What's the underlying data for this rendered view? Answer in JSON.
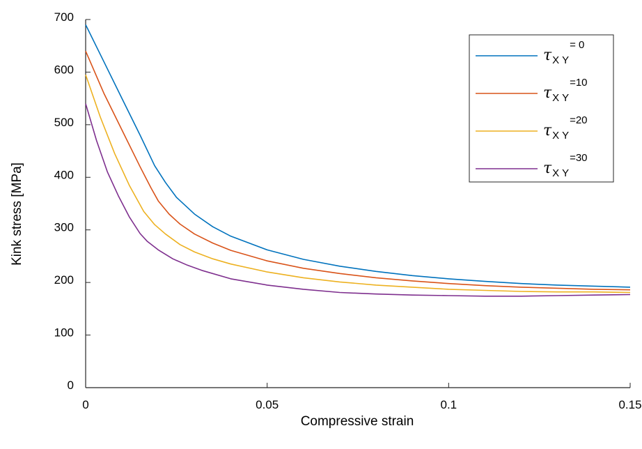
{
  "chart_data": {
    "type": "line",
    "title": "",
    "xlabel": "Compressive strain",
    "ylabel": "Kink stress [MPa]",
    "xlim": [
      0,
      0.15
    ],
    "ylim": [
      0,
      700
    ],
    "xticks": [
      0,
      0.05,
      0.1,
      0.15
    ],
    "xtick_labels": [
      "0",
      "0.05",
      "0.1",
      "0.15"
    ],
    "yticks": [
      0,
      100,
      200,
      300,
      400,
      500,
      600,
      700
    ],
    "ytick_labels": [
      "0",
      "100",
      "200",
      "300",
      "400",
      "500",
      "600",
      "700"
    ],
    "grid": false,
    "legend_position": "top-right",
    "legend": {
      "symbol": "τ",
      "subscript": "X Y",
      "suffixes": [
        "= 0",
        "=10",
        "=20",
        "=30"
      ]
    },
    "series": [
      {
        "color": "#0072BD",
        "x": [
          0,
          0.005,
          0.01,
          0.015,
          0.019,
          0.022,
          0.025,
          0.03,
          0.035,
          0.04,
          0.05,
          0.06,
          0.07,
          0.08,
          0.09,
          0.1,
          0.11,
          0.12,
          0.13,
          0.14,
          0.15
        ],
        "y": [
          690,
          620,
          550,
          480,
          422,
          390,
          362,
          330,
          306,
          288,
          262,
          244,
          231,
          221,
          213,
          207,
          202,
          198,
          195,
          193,
          191
        ]
      },
      {
        "color": "#D95319",
        "x": [
          0,
          0.005,
          0.01,
          0.015,
          0.018,
          0.02,
          0.023,
          0.026,
          0.03,
          0.035,
          0.04,
          0.05,
          0.06,
          0.07,
          0.08,
          0.09,
          0.1,
          0.11,
          0.12,
          0.13,
          0.14,
          0.15
        ],
        "y": [
          640,
          560,
          490,
          420,
          380,
          355,
          330,
          311,
          292,
          275,
          261,
          241,
          227,
          217,
          209,
          203,
          198,
          194,
          191,
          189,
          187,
          186
        ]
      },
      {
        "color": "#EDB120",
        "x": [
          0,
          0.004,
          0.008,
          0.012,
          0.016,
          0.019,
          0.022,
          0.026,
          0.03,
          0.035,
          0.04,
          0.05,
          0.06,
          0.07,
          0.08,
          0.09,
          0.1,
          0.11,
          0.12,
          0.13,
          0.14,
          0.15
        ],
        "y": [
          595,
          515,
          445,
          385,
          335,
          310,
          292,
          272,
          258,
          245,
          235,
          220,
          209,
          201,
          195,
          191,
          187,
          185,
          183,
          182,
          182,
          181
        ]
      },
      {
        "color": "#7E2F8E",
        "x": [
          0,
          0.003,
          0.006,
          0.009,
          0.012,
          0.015,
          0.017,
          0.02,
          0.024,
          0.028,
          0.032,
          0.04,
          0.05,
          0.06,
          0.07,
          0.08,
          0.09,
          0.1,
          0.11,
          0.12,
          0.13,
          0.14,
          0.15
        ],
        "y": [
          540,
          470,
          410,
          365,
          325,
          293,
          278,
          262,
          245,
          233,
          223,
          207,
          195,
          187,
          181,
          178,
          176,
          175,
          174,
          174,
          175,
          176,
          177
        ]
      }
    ]
  }
}
